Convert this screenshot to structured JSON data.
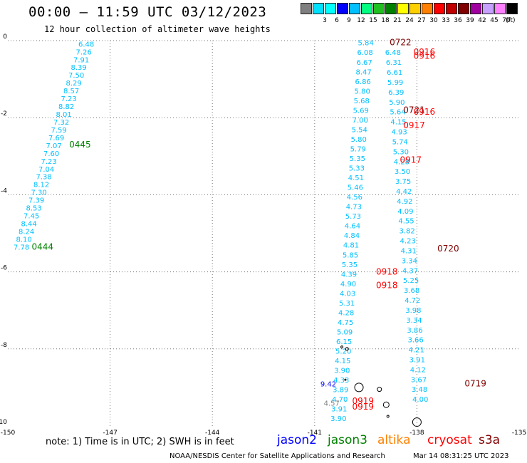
{
  "title": "00:00 — 11:59 UTC 03/12/2023",
  "subtitle": "12 hour collection of altimeter wave heights",
  "scale": {
    "unit": "(ft)",
    "bins": [
      {
        "color": "#7f7f7f",
        "label": ""
      },
      {
        "color": "#00e0ff",
        "label": "3"
      },
      {
        "color": "#00ffff",
        "label": "6"
      },
      {
        "color": "#0000ff",
        "label": "9"
      },
      {
        "color": "#00c0ff",
        "label": "12"
      },
      {
        "color": "#00ff80",
        "label": "15"
      },
      {
        "color": "#20c020",
        "label": "18"
      },
      {
        "color": "#008000",
        "label": "21"
      },
      {
        "color": "#ffff00",
        "label": "24"
      },
      {
        "color": "#ffd000",
        "label": "27"
      },
      {
        "color": "#ff8000",
        "label": "30"
      },
      {
        "color": "#ff0000",
        "label": "33"
      },
      {
        "color": "#c00000",
        "label": "36"
      },
      {
        "color": "#800000",
        "label": "39"
      },
      {
        "color": "#a000a0",
        "label": "42"
      },
      {
        "color": "#c8a0ff",
        "label": "45"
      },
      {
        "color": "#ff80ff",
        "label": "70"
      },
      {
        "color": "#000000",
        "label": ""
      }
    ]
  },
  "axes": {
    "lon_ticks": [
      "-150",
      "-147",
      "-144",
      "-141",
      "-138",
      "-135"
    ],
    "lat_ticks": [
      "0",
      "-2",
      "-4",
      "-6",
      "-8",
      "-10"
    ],
    "lon_range": [
      -150,
      -135
    ],
    "lat_range": [
      -10,
      0
    ]
  },
  "note": "note:  1) Time is in UTC;  2) SWH is in feet",
  "satellites": [
    {
      "name": "jason2",
      "color": "#0000ff"
    },
    {
      "name": "jason3",
      "color": "#008000"
    },
    {
      "name": "altika",
      "color": "#ff8000"
    },
    {
      "name": "cryosat",
      "color": "#ff0000"
    },
    {
      "name": "s3a",
      "color": "#800000"
    }
  ],
  "footer": "NOAA/NESDIS Center for Satellite Applications and Research",
  "footer_date": "Mar 14 08:31:25 UTC 2023",
  "chart_data": {
    "type": "map",
    "track_west": {
      "color": "#00c0ff",
      "values": [
        "6.48",
        "7.26",
        "7.91",
        "8.39",
        "7.50",
        "8.29",
        "8.57",
        "7.23",
        "8.82",
        "8.01",
        "7.32",
        "7.59",
        "7.69",
        "7.07",
        "7.60",
        "7.23",
        "7.04",
        "7.38",
        "8.12",
        "7.30",
        "7.39",
        "8.53",
        "7.45",
        "8.44",
        "8.24",
        "8.10",
        "7.78"
      ],
      "lat_start": -0.08,
      "lat_end": -5.35,
      "lon_start": -147.7,
      "lon_end": -149.6
    },
    "track_west_times": [
      {
        "label": "0445",
        "lat": -2.7,
        "lon": -148.2,
        "color": "#008000"
      },
      {
        "label": "0444",
        "lat": -5.35,
        "lon": -149.3,
        "color": "#008000"
      }
    ],
    "track_left": {
      "color": "#00c0ff",
      "values": [
        "5.84",
        "6.08",
        "6.67",
        "8.47",
        "6.86",
        "5.80",
        "5.68",
        "5.69",
        "7.00",
        "5.54",
        "5.80",
        "5.79",
        "5.35",
        "5.33",
        "4.51",
        "5.46",
        "4.56",
        "4.73",
        "5.73",
        "4.64",
        "4.84",
        "4.81",
        "5.85",
        "5.35",
        "4.39",
        "4.90",
        "4.03",
        "5.31",
        "4.28",
        "4.75",
        "5.09",
        "6.15",
        "5.20",
        "4.15",
        "3.90",
        "4.33",
        "3.89",
        "4.70",
        "3.91",
        "3.90"
      ],
      "lat_start": -0.05,
      "lat_end": -9.8,
      "lon_start": -139.5,
      "lon_end": -140.3
    },
    "track_right": {
      "color": "#00c0ff",
      "values": [
        "6.48",
        "6.31",
        "6.61",
        "5.99",
        "6.39",
        "5.90",
        "5.64",
        "4.15",
        "4.93",
        "5.74",
        "5.30",
        "4.28",
        "3.50",
        "3.75",
        "4.42",
        "4.92",
        "4.09",
        "4.55",
        "3.82",
        "4.23",
        "4.31",
        "3.34",
        "4.37",
        "5.25",
        "3.68",
        "4.72",
        "3.98",
        "3.34",
        "3.86",
        "3.66",
        "4.21",
        "3.91",
        "4.12",
        "3.67",
        "3.48",
        "4.00"
      ],
      "lat_start": -0.3,
      "lat_end": -9.3,
      "lon_start": -138.7,
      "lon_end": -137.9
    },
    "other_values": [
      {
        "label": "9.42",
        "lat": -8.9,
        "lon": -140.6,
        "color": "#0000ff"
      },
      {
        "label": "4.57",
        "lat": -9.4,
        "lon": -140.5,
        "color": "#7f7f7f"
      }
    ],
    "time_labels": [
      {
        "label": "0722",
        "lat": -0.05,
        "lon": -138.8,
        "color": "#800000"
      },
      {
        "label": "0916",
        "lat": -0.3,
        "lon": -138.1,
        "color": "#ff0000"
      },
      {
        "label": "0916",
        "lat": -0.4,
        "lon": -138.1,
        "color": "#ff0000"
      },
      {
        "label": "0721",
        "lat": -1.8,
        "lon": -138.4,
        "color": "#800000"
      },
      {
        "label": "0916",
        "lat": -1.85,
        "lon": -138.1,
        "color": "#ff0000"
      },
      {
        "label": "0917",
        "lat": -2.2,
        "lon": -138.4,
        "color": "#ff0000"
      },
      {
        "label": "0917",
        "lat": -3.1,
        "lon": -138.5,
        "color": "#ff0000"
      },
      {
        "label": "0720",
        "lat": -5.4,
        "lon": -137.4,
        "color": "#800000"
      },
      {
        "label": "0918",
        "lat": -6.0,
        "lon": -139.2,
        "color": "#ff0000"
      },
      {
        "label": "0918",
        "lat": -6.35,
        "lon": -139.2,
        "color": "#ff0000"
      },
      {
        "label": "0719",
        "lat": -8.9,
        "lon": -136.6,
        "color": "#800000"
      },
      {
        "label": "0919",
        "lat": -9.35,
        "lon": -139.9,
        "color": "#ff0000"
      },
      {
        "label": "0919",
        "lat": -9.5,
        "lon": -139.9,
        "color": "#ff0000"
      }
    ]
  }
}
